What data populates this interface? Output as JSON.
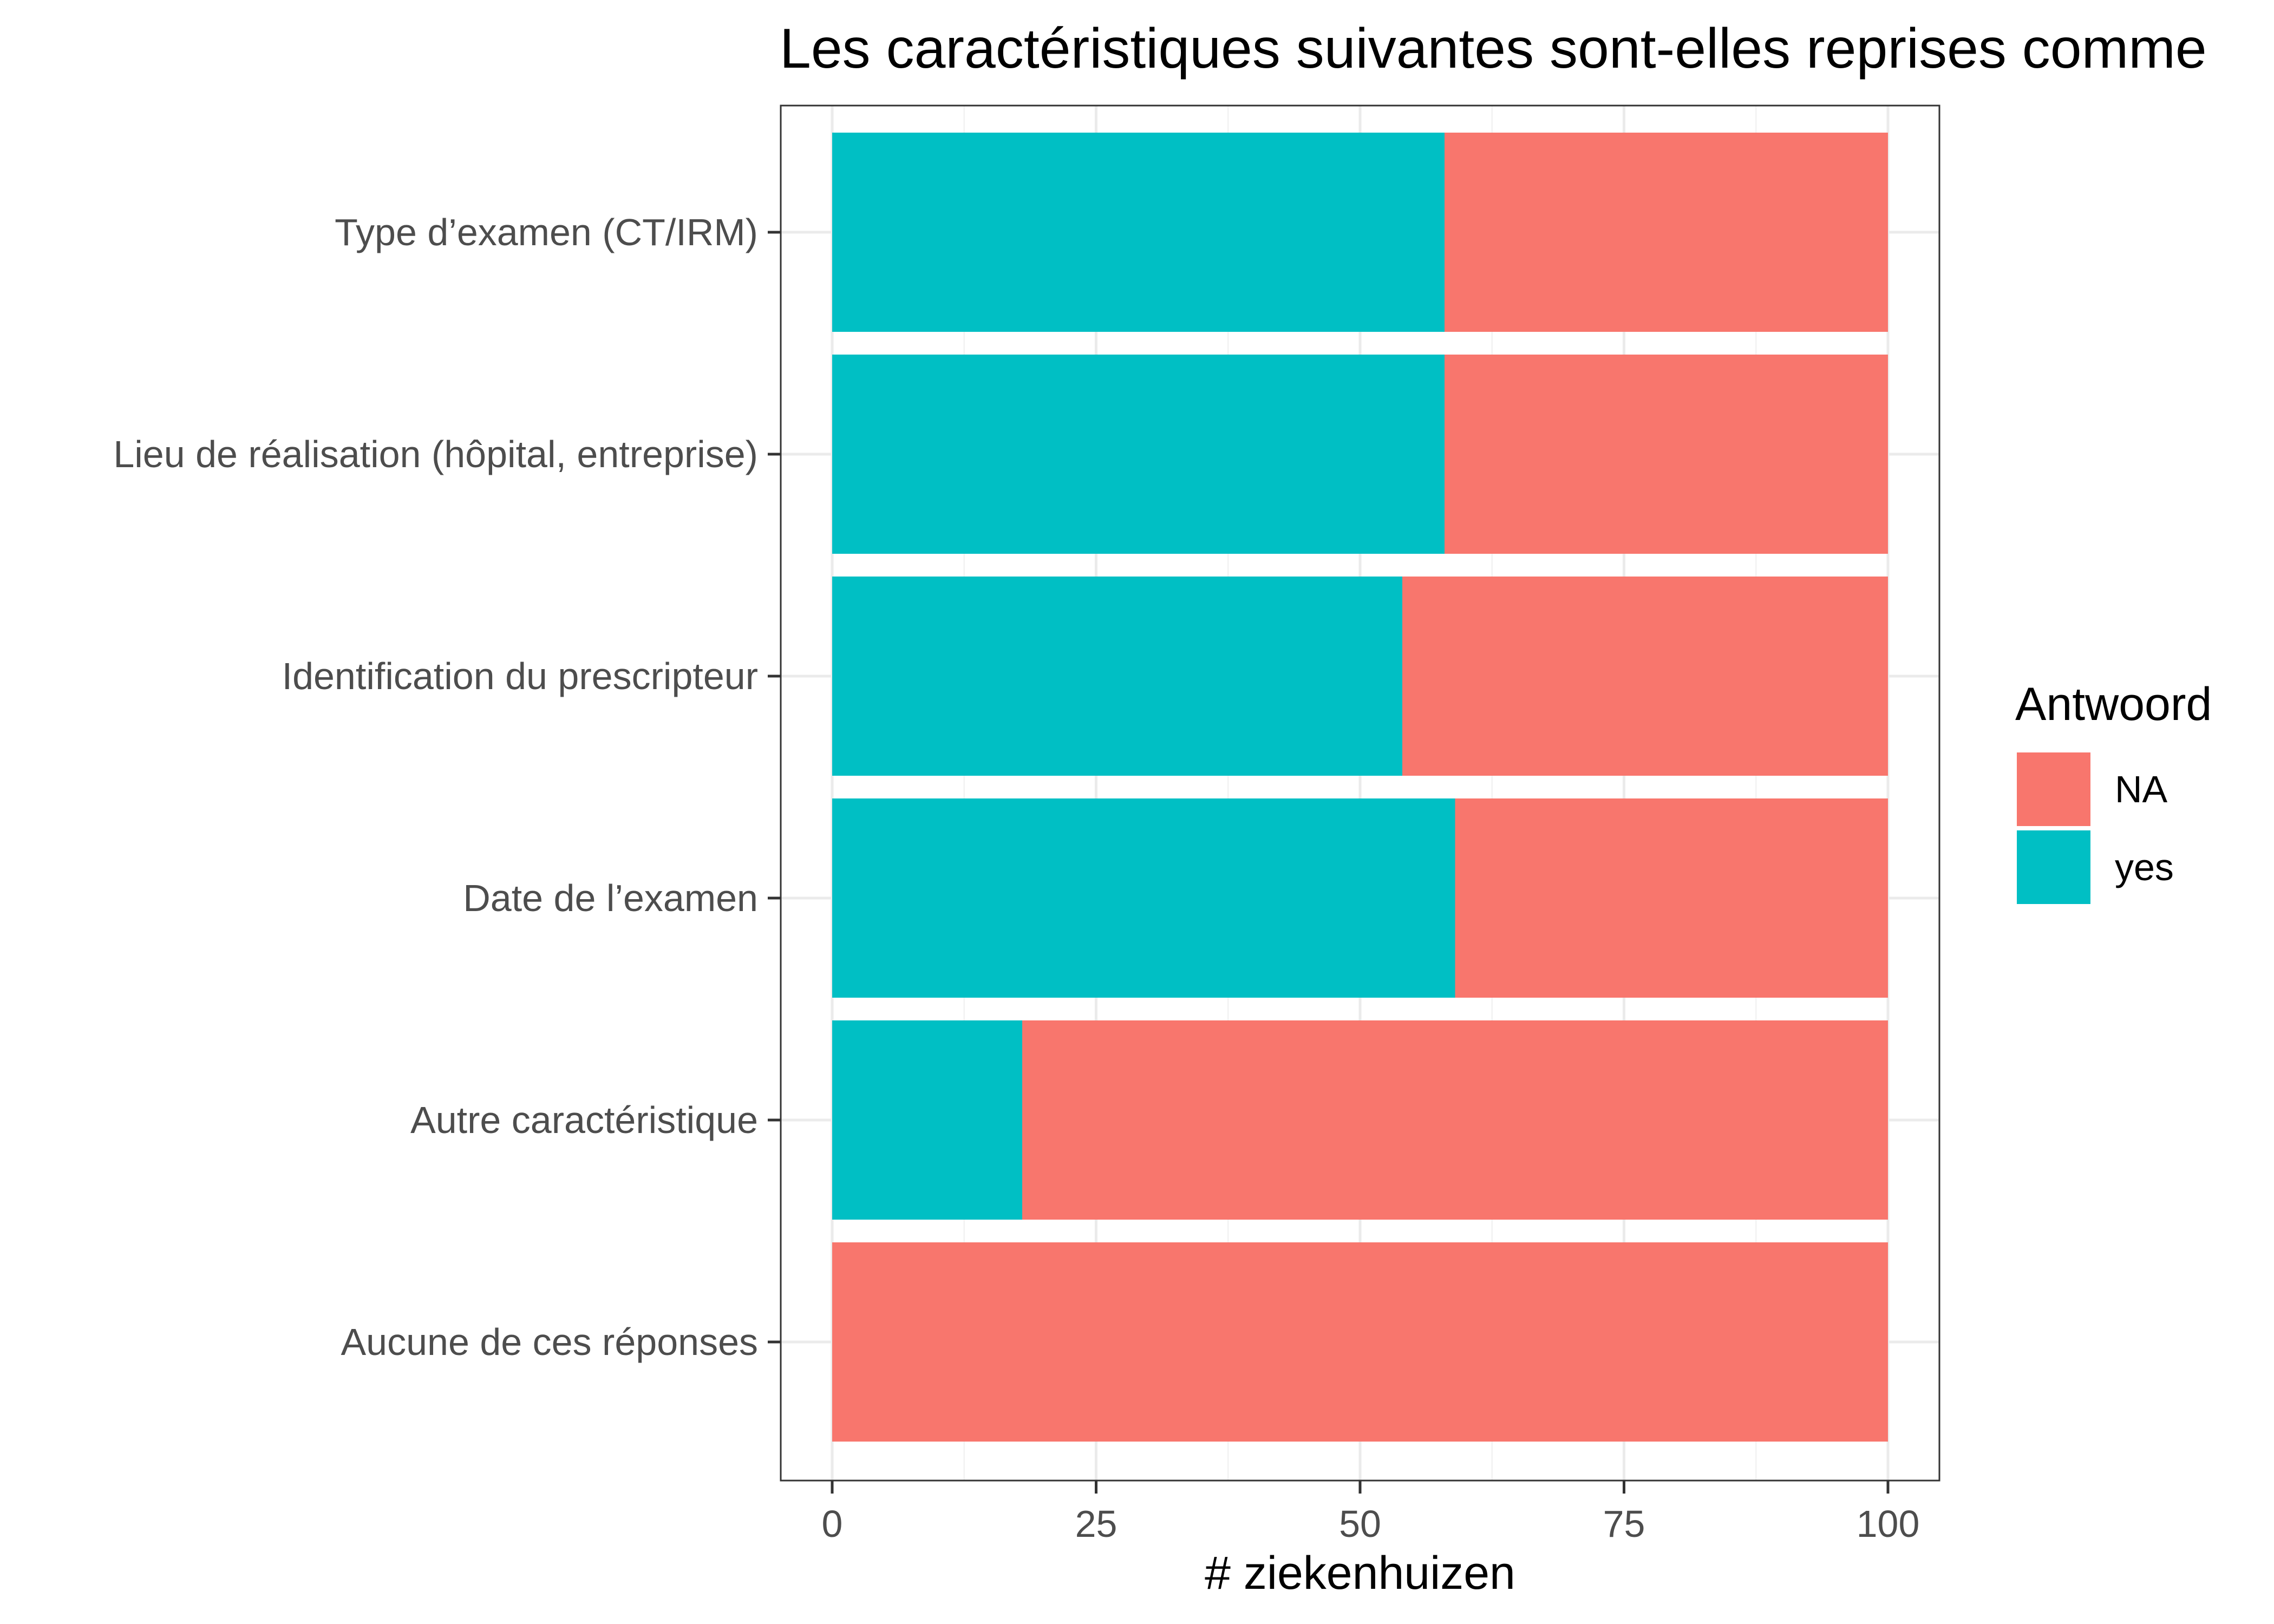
{
  "chart_data": {
    "type": "bar",
    "orientation": "horizontal",
    "stacked": true,
    "title": "Les caractéristiques suivantes sont-elles reprises comme",
    "xlabel": "# ziekenhuizen",
    "ylabel": "",
    "xlim": [
      0,
      100
    ],
    "x_ticks": [
      0,
      25,
      50,
      75,
      100
    ],
    "x_tick_labels": [
      "0",
      "25",
      "50",
      "75",
      "100"
    ],
    "categories": [
      "Type d’examen (CT/IRM)",
      "Lieu de réalisation (hôpital, entreprise)",
      "Identification du prescripteur",
      "Date de l’examen",
      "Autre caractéristique",
      "Aucune de ces réponses"
    ],
    "series": [
      {
        "name": "yes",
        "color": "#00BFC4",
        "values": [
          58,
          58,
          54,
          59,
          18,
          0
        ]
      },
      {
        "name": "NA",
        "color": "#F8766D",
        "values": [
          42,
          42,
          46,
          41,
          82,
          100
        ]
      }
    ],
    "legend": {
      "title": "Antwoord",
      "placement": "right",
      "entries": [
        {
          "label": "NA",
          "color": "#F8766D"
        },
        {
          "label": "yes",
          "color": "#00BFC4"
        }
      ]
    },
    "grid": true
  }
}
